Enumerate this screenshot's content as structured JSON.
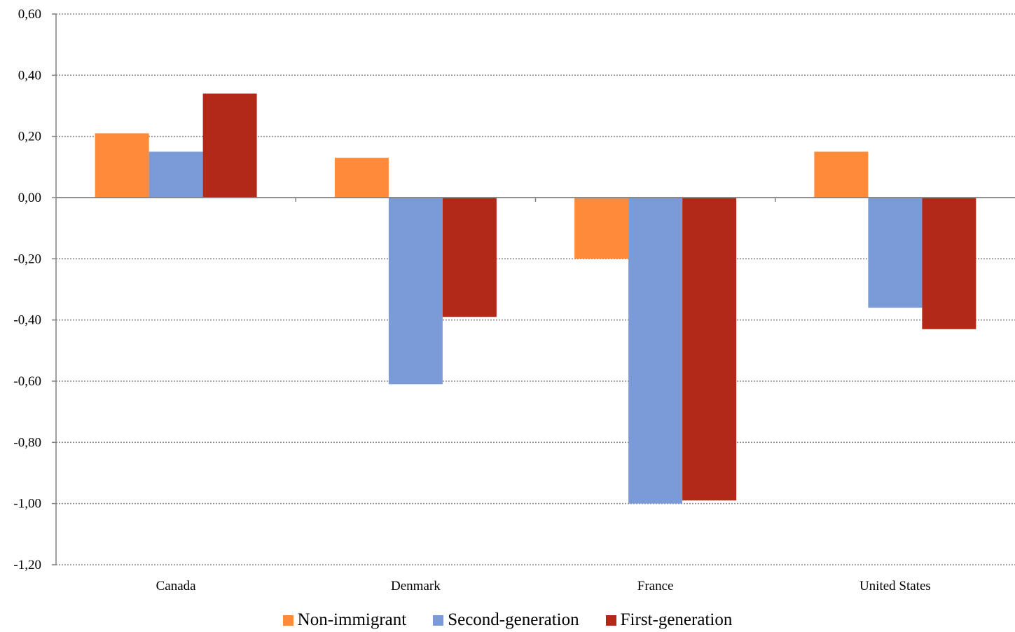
{
  "chart_data": {
    "type": "bar",
    "categories": [
      "Canada",
      "Denmark",
      "France",
      "United States"
    ],
    "series": [
      {
        "name": "Non-immigrant",
        "color": "#FF8A3A",
        "values": [
          0.21,
          0.13,
          -0.2,
          0.15
        ]
      },
      {
        "name": "Second-generation",
        "color": "#7A9BD8",
        "values": [
          0.15,
          -0.61,
          -1.0,
          -0.36
        ]
      },
      {
        "name": "First-generation",
        "color": "#B22A17",
        "values": [
          0.34,
          -0.39,
          -0.99,
          -0.43
        ]
      }
    ],
    "ylim": [
      -1.2,
      0.6
    ],
    "yticks": [
      "0,60",
      "0,40",
      "0,20",
      "0,00",
      "-0,20",
      "-0,40",
      "-0,60",
      "-0,80",
      "-1,00",
      "-1,20"
    ],
    "ytick_values": [
      0.6,
      0.4,
      0.2,
      0.0,
      -0.2,
      -0.4,
      -0.6,
      -0.8,
      -1.0,
      -1.2
    ],
    "grid": "horizontal-dotted",
    "legend_position": "bottom",
    "title": "",
    "xlabel": "",
    "ylabel": ""
  }
}
